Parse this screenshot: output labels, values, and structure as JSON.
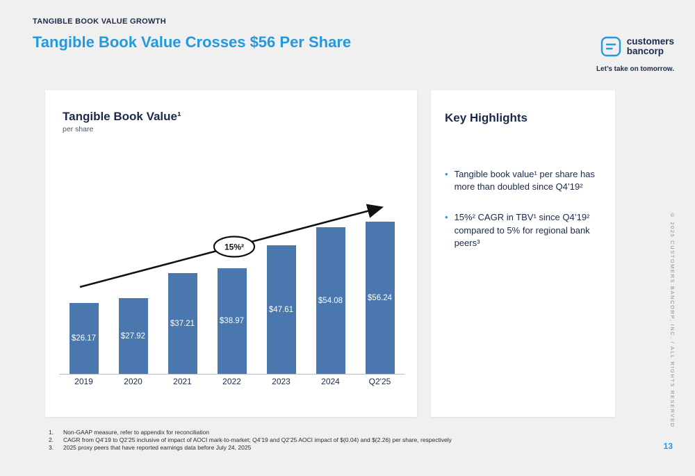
{
  "colors": {
    "accent_blue": "#2499dd",
    "navy": "#1b2a4a",
    "bar": "#4a77ad",
    "background": "#f0f0f1"
  },
  "header": {
    "eyebrow": "TANGIBLE BOOK VALUE GROWTH",
    "title": "Tangible Book Value Crosses $56 Per Share"
  },
  "logo": {
    "name_line1": "customers",
    "name_line2": "bancorp",
    "tagline": "Let’s take on tomorrow."
  },
  "chart_card": {
    "title": "Tangible Book Value¹",
    "subtitle": "per share"
  },
  "chart_data": {
    "type": "bar",
    "title": "Tangible Book Value per share",
    "categories": [
      "2019",
      "2020",
      "2021",
      "2022",
      "2023",
      "2024",
      "Q2'25"
    ],
    "values": [
      26.17,
      27.92,
      37.21,
      38.97,
      47.61,
      54.08,
      56.24
    ],
    "value_labels": [
      "$26.17",
      "$27.92",
      "$37.21",
      "$38.97",
      "$47.61",
      "$54.08",
      "$56.24"
    ],
    "xlabel": "",
    "ylabel": "",
    "ylim": [
      0,
      60
    ],
    "grid": false,
    "legend": false,
    "bar_color": "#4a77ad",
    "annotation_label": "15%²",
    "annotation_meaning": "CAGR trend arrow from 2019 to Q2'25"
  },
  "highlights": {
    "title": "Key Highlights",
    "items": [
      "Tangible book value¹ per share has more than doubled since Q4’19²",
      "15%² CAGR in TBV¹ since Q4’19² compared to 5% for regional bank peers³"
    ]
  },
  "footnotes": [
    {
      "num": "1.",
      "text": "Non-GAAP measure, refer to appendix for reconciliation"
    },
    {
      "num": "2.",
      "text": "CAGR from Q4’19 to Q2’25 inclusive of impact of AOCI mark-to-market; Q4’19 and Q2’25 AOCI impact of $(0.04) and $(2.26) per share, respectively"
    },
    {
      "num": "3.",
      "text": "2025 proxy peers that have reported earnings data before July 24, 2025"
    }
  ],
  "page_number": "13",
  "copyright_vertical": "© 2025 CUSTOMERS BANCORP, INC. / ALL RIGHTS RESERVED"
}
